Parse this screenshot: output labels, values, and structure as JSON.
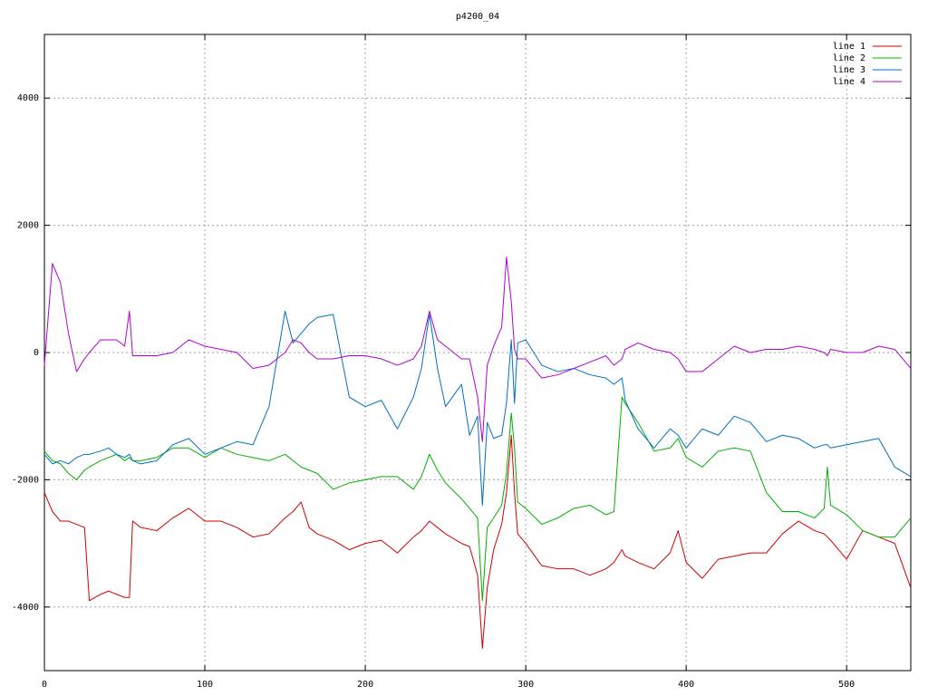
{
  "chart_data": {
    "type": "line",
    "title": "p4200_04",
    "x": [
      0,
      5,
      10,
      15,
      20,
      25,
      28,
      35,
      40,
      45,
      50,
      53,
      55,
      60,
      70,
      80,
      90,
      100,
      110,
      120,
      130,
      140,
      150,
      155,
      160,
      165,
      170,
      180,
      190,
      200,
      210,
      220,
      230,
      235,
      240,
      245,
      250,
      260,
      265,
      270,
      273,
      276,
      280,
      285,
      288,
      291,
      293,
      295,
      300,
      310,
      320,
      330,
      340,
      350,
      355,
      360,
      362,
      370,
      380,
      390,
      395,
      400,
      410,
      420,
      430,
      440,
      450,
      460,
      470,
      480,
      486,
      488,
      490,
      500,
      510,
      520,
      530,
      540
    ],
    "series": [
      {
        "name": "line 1",
        "color": "#d00000",
        "values": [
          -2200,
          -2500,
          -2650,
          -2650,
          -2700,
          -2750,
          -3900,
          -3800,
          -3750,
          -3800,
          -3850,
          -3850,
          -2650,
          -2750,
          -2800,
          -2600,
          -2450,
          -2650,
          -2650,
          -2750,
          -2900,
          -2850,
          -2600,
          -2500,
          -2350,
          -2750,
          -2850,
          -2950,
          -3100,
          -3000,
          -2950,
          -3150,
          -2900,
          -2800,
          -2650,
          -2750,
          -2850,
          -3000,
          -3050,
          -3500,
          -4650,
          -3700,
          -3100,
          -2700,
          -2200,
          -1300,
          -2200,
          -2850,
          -3000,
          -3350,
          -3400,
          -3400,
          -3500,
          -3400,
          -3300,
          -3100,
          -3200,
          -3300,
          -3400,
          -3150,
          -2800,
          -3300,
          -3550,
          -3250,
          -3200,
          -3150,
          -3150,
          -2850,
          -2650,
          -2800,
          -2850,
          -2900,
          -2950,
          -3250,
          -2800,
          -2900,
          -3000,
          -3700
        ]
      },
      {
        "name": "line 2",
        "color": "#00b000",
        "values": [
          -1550,
          -1700,
          -1750,
          -1900,
          -2000,
          -1850,
          -1800,
          -1700,
          -1650,
          -1600,
          -1700,
          -1650,
          -1700,
          -1700,
          -1650,
          -1500,
          -1500,
          -1650,
          -1500,
          -1600,
          -1650,
          -1700,
          -1600,
          -1700,
          -1800,
          -1850,
          -1900,
          -2150,
          -2050,
          -2000,
          -1950,
          -1950,
          -2150,
          -1950,
          -1600,
          -1850,
          -2050,
          -2300,
          -2450,
          -2600,
          -3900,
          -2750,
          -2600,
          -2400,
          -1900,
          -950,
          -1500,
          -2350,
          -2450,
          -2700,
          -2600,
          -2450,
          -2400,
          -2550,
          -2500,
          -700,
          -800,
          -1100,
          -1550,
          -1500,
          -1350,
          -1650,
          -1800,
          -1550,
          -1500,
          -1550,
          -2200,
          -2500,
          -2500,
          -2600,
          -2450,
          -1800,
          -2400,
          -2550,
          -2800,
          -2900,
          -2900,
          -2600
        ]
      },
      {
        "name": "line 3",
        "color": "#0070c0",
        "values": [
          -1600,
          -1750,
          -1700,
          -1750,
          -1650,
          -1600,
          -1600,
          -1550,
          -1500,
          -1600,
          -1650,
          -1600,
          -1700,
          -1750,
          -1700,
          -1450,
          -1350,
          -1600,
          -1500,
          -1400,
          -1450,
          -850,
          650,
          150,
          300,
          450,
          550,
          600,
          -700,
          -850,
          -750,
          -1200,
          -700,
          -250,
          600,
          -250,
          -850,
          -500,
          -1300,
          -1000,
          -2400,
          -1100,
          -1350,
          -1300,
          -800,
          200,
          -800,
          150,
          200,
          -200,
          -300,
          -250,
          -350,
          -400,
          -500,
          -400,
          -750,
          -1200,
          -1500,
          -1200,
          -1300,
          -1500,
          -1200,
          -1300,
          -1000,
          -1100,
          -1400,
          -1300,
          -1350,
          -1500,
          -1450,
          -1450,
          -1500,
          -1450,
          -1400,
          -1350,
          -1800,
          -1950
        ]
      },
      {
        "name": "line 4",
        "color": "#b000d0",
        "values": [
          -200,
          1400,
          1100,
          300,
          -300,
          -100,
          0,
          200,
          200,
          200,
          100,
          650,
          -50,
          -50,
          -50,
          0,
          200,
          100,
          50,
          0,
          -250,
          -200,
          0,
          200,
          150,
          0,
          -100,
          -100,
          -50,
          -50,
          -100,
          -200,
          -100,
          100,
          650,
          200,
          100,
          -100,
          -100,
          -700,
          -1400,
          -200,
          100,
          400,
          1500,
          800,
          50,
          -100,
          -100,
          -400,
          -350,
          -250,
          -150,
          -50,
          -200,
          -100,
          50,
          150,
          50,
          0,
          -100,
          -300,
          -300,
          -100,
          100,
          0,
          50,
          50,
          100,
          50,
          0,
          -50,
          50,
          0,
          0,
          100,
          50,
          -250
        ]
      }
    ],
    "xlim": [
      0,
      540
    ],
    "ylim": [
      -5000,
      5000
    ],
    "xticks": [
      0,
      100,
      200,
      300,
      400,
      500
    ],
    "yticks": [
      -4000,
      -2000,
      0,
      2000,
      4000
    ],
    "grid": true,
    "legend": "top-right"
  }
}
